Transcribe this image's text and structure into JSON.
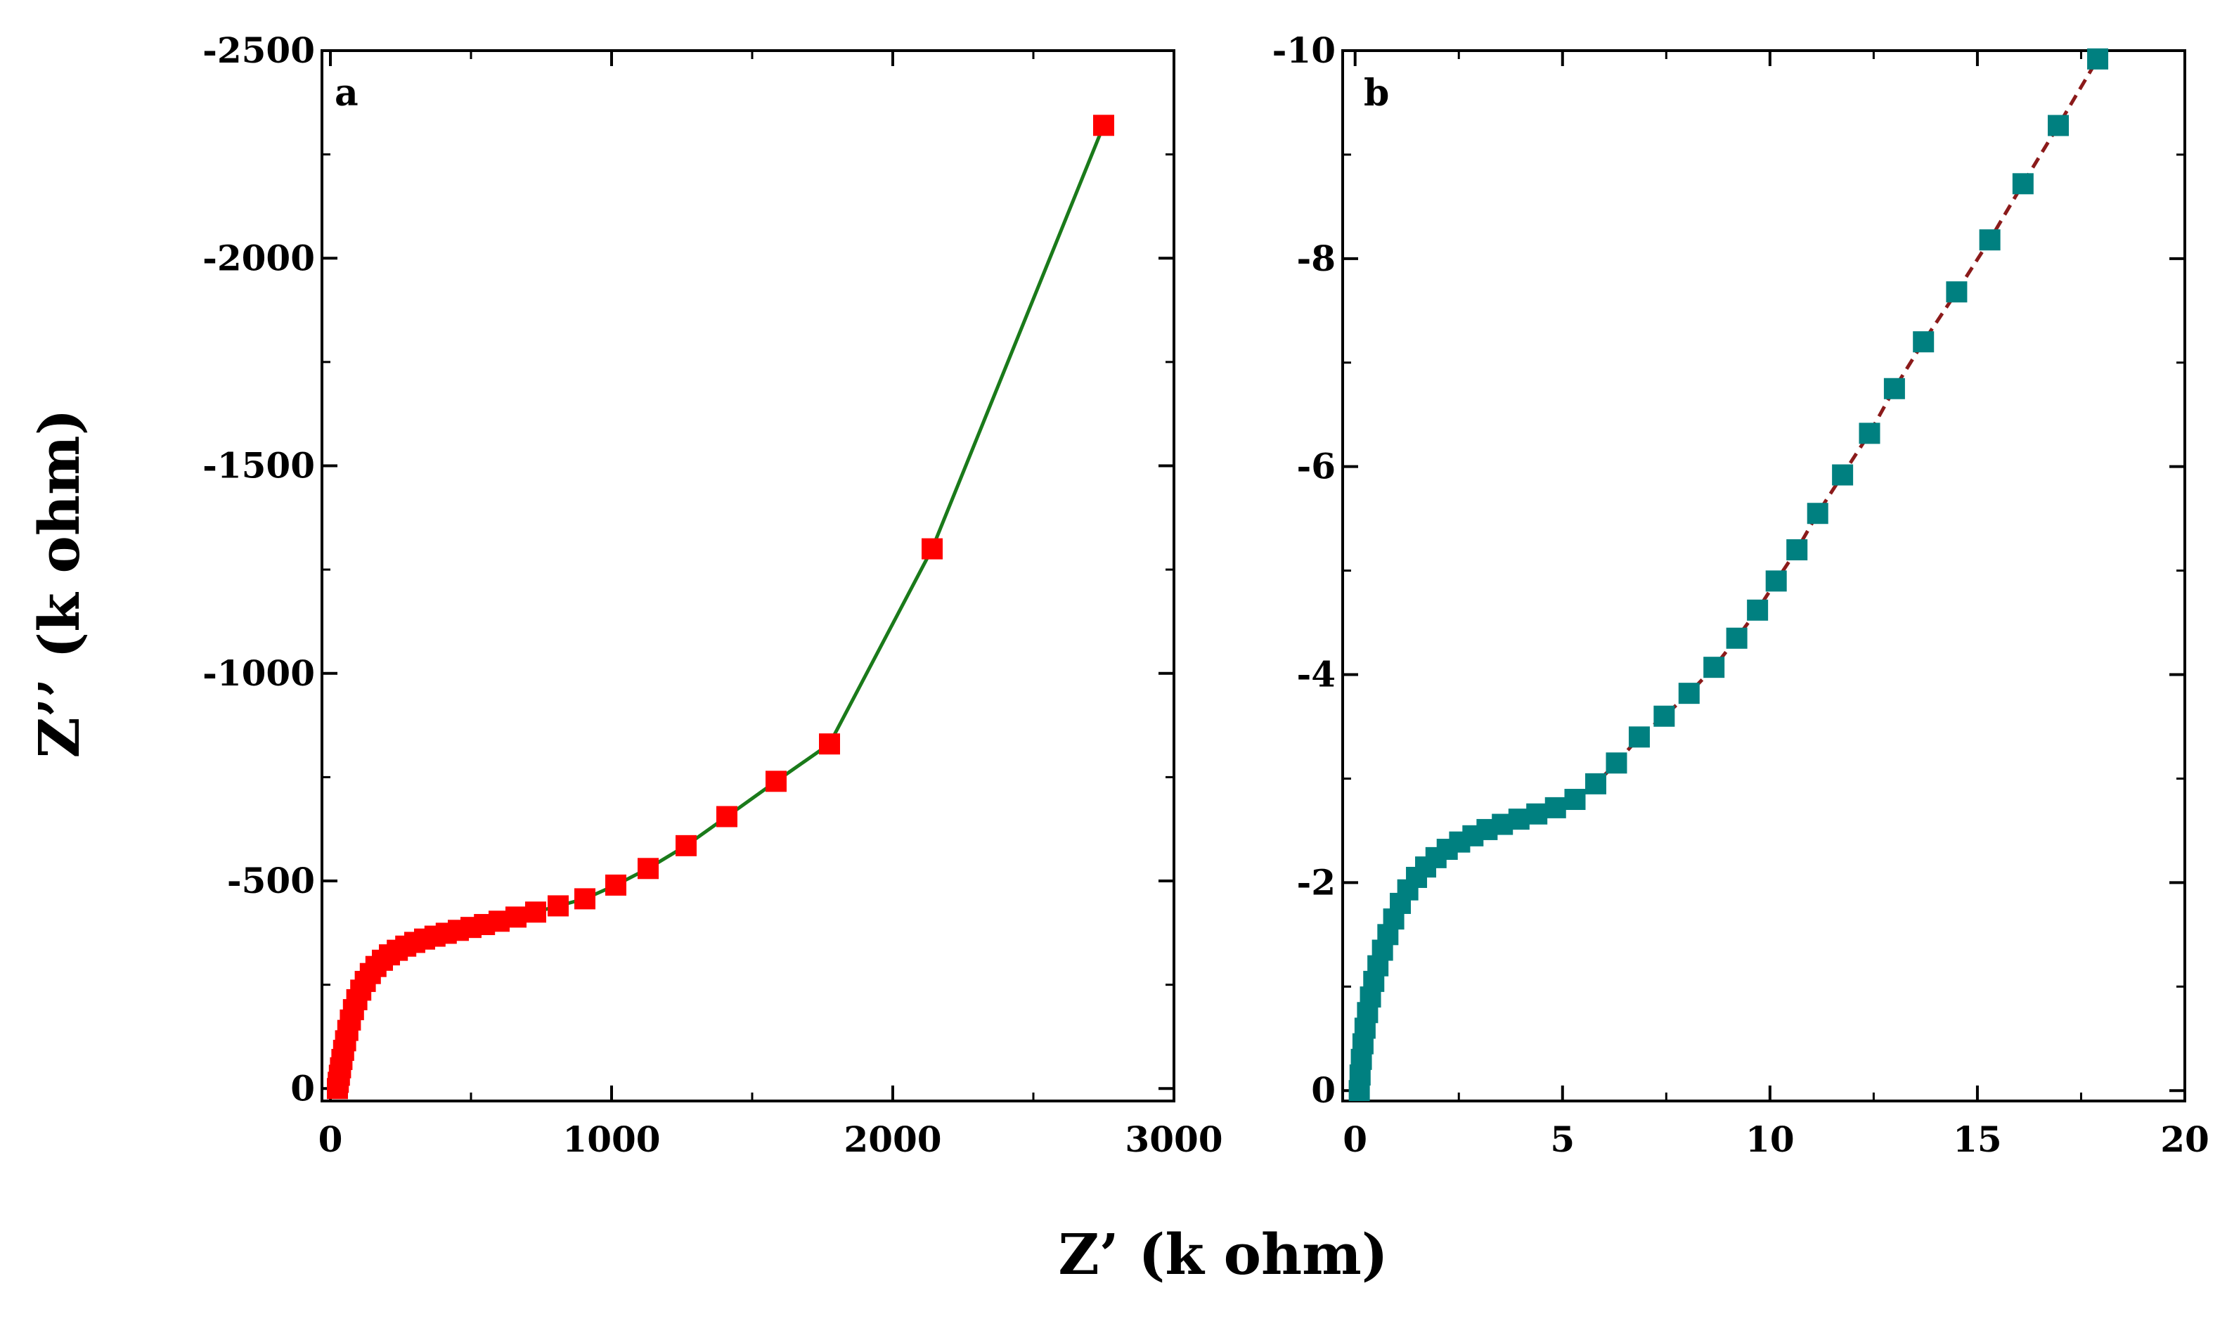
{
  "figure": {
    "ylabel": "Z’’ (k ohm)",
    "xlabel": "Z’ (k ohm)"
  },
  "chart_data": [
    {
      "panel": "a",
      "type": "scatter",
      "title": "",
      "xlabel": "Z’ (k ohm)",
      "ylabel": "Z’’ (k ohm)",
      "xlim": [
        -30,
        3000
      ],
      "ylim": [
        30,
        -2500
      ],
      "x_ticks": [
        0,
        1000,
        2000,
        3000
      ],
      "x_tick_labels": [
        "0",
        "1000",
        "2000",
        "3000"
      ],
      "y_ticks": [
        0,
        -500,
        -1000,
        -1500,
        -2000,
        -2500
      ],
      "y_tick_labels": [
        "0",
        "-500",
        "-1000",
        "-1500",
        "-2000",
        "-2500"
      ],
      "marker_color": "#ff0000",
      "line_color": "#1a7a1a",
      "line_style": "solid",
      "series": [
        {
          "name": "a",
          "x": [
            25,
            28,
            32,
            36,
            41,
            47,
            54,
            62,
            71,
            82,
            94,
            108,
            124,
            142,
            162,
            185,
            210,
            238,
            268,
            300,
            335,
            372,
            412,
            455,
            500,
            548,
            600,
            660,
            730,
            810,
            905,
            1015,
            1130,
            1265,
            1410,
            1585,
            1775,
            2140,
            2750
          ],
          "y": [
            0,
            -15,
            -32,
            -50,
            -70,
            -92,
            -115,
            -140,
            -165,
            -190,
            -214,
            -237,
            -258,
            -277,
            -294,
            -309,
            -322,
            -333,
            -343,
            -352,
            -360,
            -367,
            -374,
            -381,
            -388,
            -395,
            -403,
            -413,
            -425,
            -440,
            -457,
            -490,
            -530,
            -585,
            -655,
            -740,
            -830,
            -1300,
            -2320
          ]
        }
      ]
    },
    {
      "panel": "b",
      "type": "scatter",
      "title": "",
      "xlabel": "Z’ (k ohm)",
      "ylabel": "Z’’ (k ohm)",
      "xlim": [
        -0.3,
        20
      ],
      "ylim": [
        0.1,
        -10
      ],
      "x_ticks": [
        0,
        5,
        10,
        15,
        20
      ],
      "x_tick_labels": [
        "0",
        "5",
        "10",
        "15",
        "20"
      ],
      "y_ticks": [
        0,
        -2,
        -4,
        -6,
        -8,
        -10
      ],
      "y_tick_labels": [
        "0",
        "-2",
        "-4",
        "-6",
        "-8",
        "-10"
      ],
      "marker_color": "#008080",
      "line_color": "#8b1a1a",
      "line_style": "dashed",
      "series": [
        {
          "name": "b",
          "x": [
            0.1,
            0.12,
            0.15,
            0.19,
            0.24,
            0.3,
            0.37,
            0.45,
            0.55,
            0.66,
            0.79,
            0.93,
            1.09,
            1.27,
            1.48,
            1.7,
            1.95,
            2.22,
            2.52,
            2.84,
            3.18,
            3.55,
            3.95,
            4.38,
            4.83,
            5.3,
            5.8,
            6.3,
            6.85,
            7.45,
            8.05,
            8.65,
            9.2,
            9.7,
            10.15,
            10.65,
            11.15,
            11.75,
            12.4,
            13.0,
            13.7,
            14.5,
            15.3,
            16.1,
            16.95,
            17.9
          ],
          "y": [
            0,
            -0.15,
            -0.3,
            -0.45,
            -0.6,
            -0.75,
            -0.9,
            -1.05,
            -1.2,
            -1.35,
            -1.5,
            -1.65,
            -1.8,
            -1.93,
            -2.05,
            -2.15,
            -2.24,
            -2.32,
            -2.39,
            -2.45,
            -2.51,
            -2.56,
            -2.61,
            -2.66,
            -2.72,
            -2.8,
            -2.95,
            -3.15,
            -3.4,
            -3.6,
            -3.82,
            -4.07,
            -4.35,
            -4.62,
            -4.9,
            -5.2,
            -5.55,
            -5.92,
            -6.32,
            -6.75,
            -7.2,
            -7.68,
            -8.18,
            -8.72,
            -9.28,
            -9.92
          ]
        }
      ]
    }
  ]
}
